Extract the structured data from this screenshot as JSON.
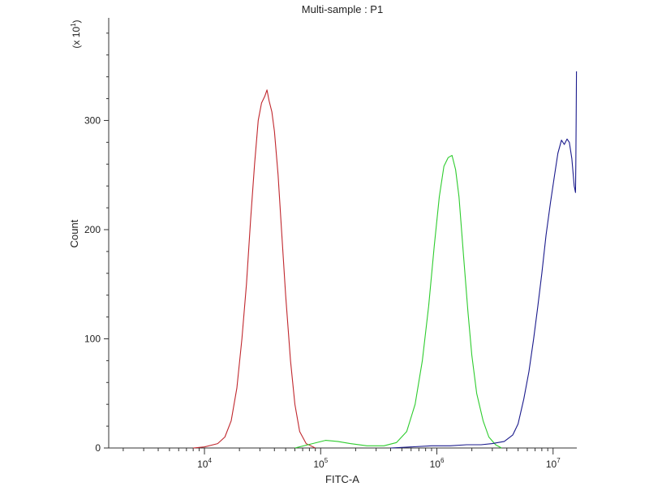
{
  "chart_data": {
    "type": "line",
    "title": "Multi-sample : P1",
    "xlabel": "FITC-A",
    "ylabel": "Count",
    "y_multiplier_label": "(x 10",
    "y_multiplier_exp": "1",
    "y_multiplier_close": ")",
    "x_scale": "log",
    "xlim": [
      1500,
      16000000
    ],
    "ylim": [
      0,
      394
    ],
    "x_major_ticks": [
      {
        "value": 10000,
        "base": "10",
        "exp": "4"
      },
      {
        "value": 100000,
        "base": "10",
        "exp": "5"
      },
      {
        "value": 1000000,
        "base": "10",
        "exp": "6"
      },
      {
        "value": 10000000,
        "base": "10",
        "exp": "7"
      }
    ],
    "y_ticks": [
      {
        "value": 0,
        "label": "0"
      },
      {
        "value": 100,
        "label": "100"
      },
      {
        "value": 200,
        "label": "200"
      },
      {
        "value": 300,
        "label": "300"
      }
    ],
    "grid": false,
    "legend": "none",
    "series": [
      {
        "color": "#c0272d",
        "points": [
          [
            8000,
            0
          ],
          [
            10000,
            1
          ],
          [
            13000,
            4
          ],
          [
            15000,
            10
          ],
          [
            17000,
            25
          ],
          [
            19000,
            55
          ],
          [
            21000,
            100
          ],
          [
            23000,
            150
          ],
          [
            25000,
            210
          ],
          [
            27000,
            260
          ],
          [
            29000,
            300
          ],
          [
            31000,
            316
          ],
          [
            33000,
            322
          ],
          [
            34500,
            328
          ],
          [
            36000,
            318
          ],
          [
            38000,
            308
          ],
          [
            40000,
            290
          ],
          [
            43000,
            250
          ],
          [
            46000,
            200
          ],
          [
            50000,
            140
          ],
          [
            55000,
            80
          ],
          [
            60000,
            40
          ],
          [
            66000,
            15
          ],
          [
            75000,
            4
          ],
          [
            90000,
            0
          ]
        ]
      },
      {
        "color": "#2ecc2e",
        "points": [
          [
            60000,
            0
          ],
          [
            85000,
            4
          ],
          [
            110000,
            7
          ],
          [
            140000,
            6
          ],
          [
            180000,
            4
          ],
          [
            250000,
            2
          ],
          [
            350000,
            2
          ],
          [
            450000,
            5
          ],
          [
            550000,
            15
          ],
          [
            650000,
            40
          ],
          [
            750000,
            80
          ],
          [
            850000,
            130
          ],
          [
            950000,
            185
          ],
          [
            1050000,
            230
          ],
          [
            1150000,
            258
          ],
          [
            1250000,
            266
          ],
          [
            1350000,
            268
          ],
          [
            1450000,
            255
          ],
          [
            1550000,
            230
          ],
          [
            1700000,
            175
          ],
          [
            1850000,
            125
          ],
          [
            2000000,
            85
          ],
          [
            2200000,
            50
          ],
          [
            2500000,
            25
          ],
          [
            2800000,
            10
          ],
          [
            3200000,
            3
          ],
          [
            3600000,
            0
          ]
        ]
      },
      {
        "color": "#1a1a8c",
        "points": [
          [
            400000,
            0
          ],
          [
            600000,
            1
          ],
          [
            900000,
            2
          ],
          [
            1300000,
            2
          ],
          [
            1800000,
            3
          ],
          [
            2400000,
            3
          ],
          [
            3000000,
            4
          ],
          [
            3800000,
            6
          ],
          [
            4500000,
            12
          ],
          [
            5000000,
            22
          ],
          [
            5600000,
            45
          ],
          [
            6200000,
            70
          ],
          [
            6800000,
            100
          ],
          [
            7400000,
            130
          ],
          [
            8000000,
            160
          ],
          [
            8700000,
            195
          ],
          [
            9500000,
            225
          ],
          [
            10300000,
            250
          ],
          [
            11000000,
            270
          ],
          [
            11800000,
            282
          ],
          [
            12500000,
            278
          ],
          [
            13200000,
            283
          ],
          [
            13800000,
            280
          ],
          [
            14500000,
            265
          ],
          [
            15200000,
            240
          ],
          [
            15600000,
            234
          ],
          [
            15700000,
            260
          ],
          [
            15800000,
            300
          ],
          [
            15900000,
            345
          ]
        ]
      }
    ]
  }
}
